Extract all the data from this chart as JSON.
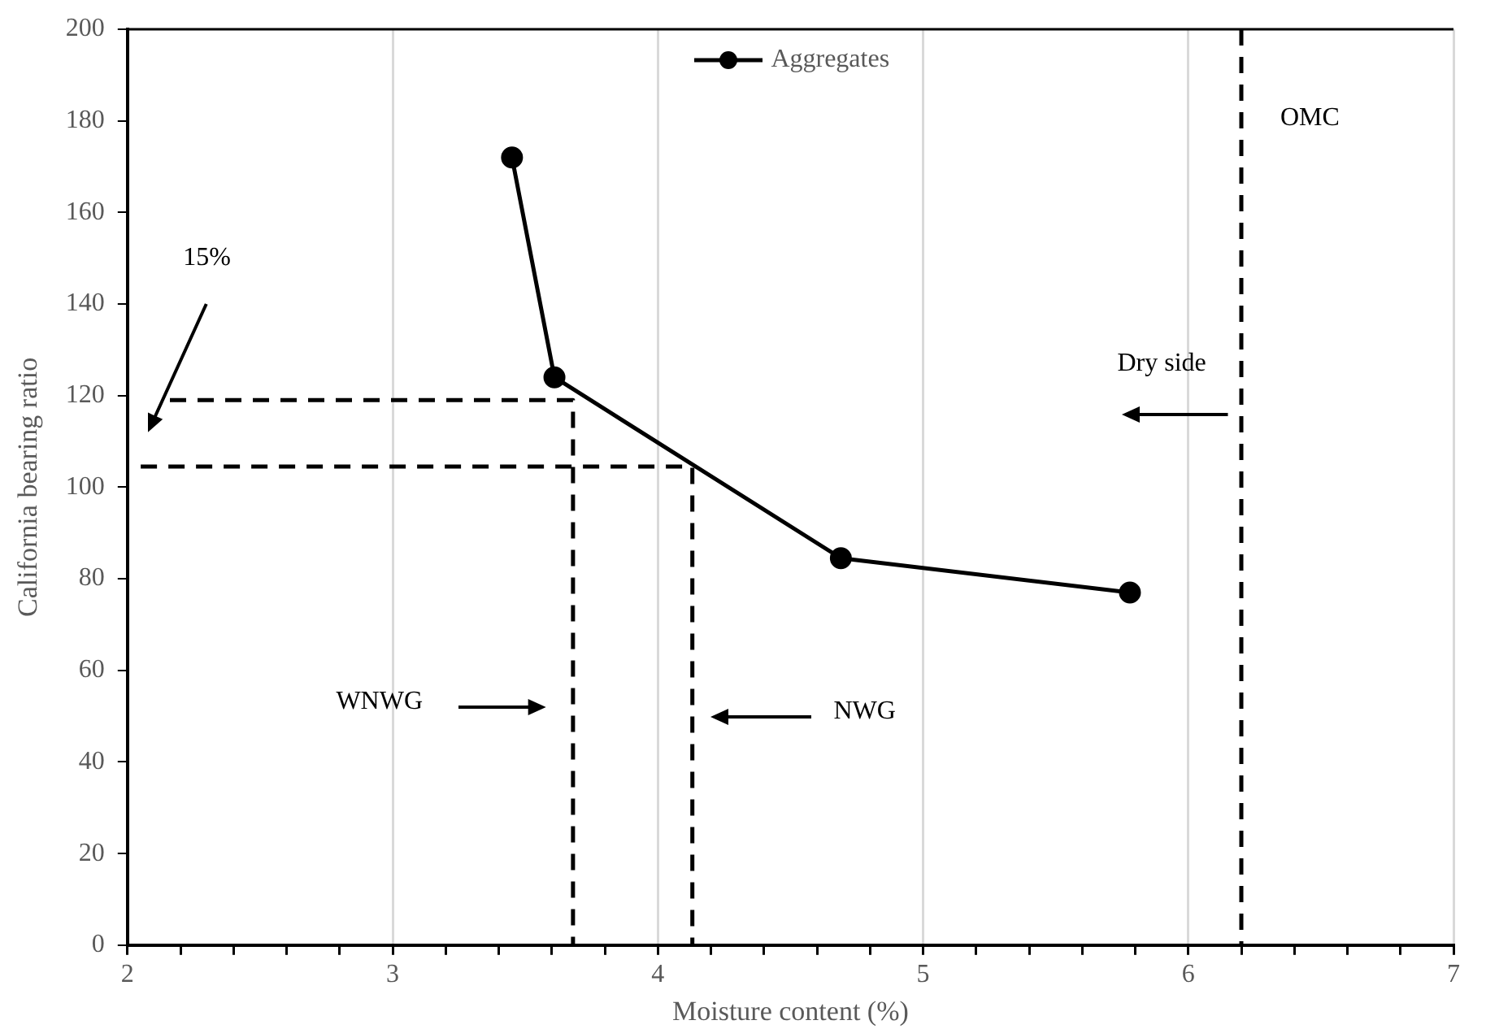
{
  "chart_data": {
    "type": "line",
    "xlabel": "Moisture content (%)",
    "ylabel": "California bearing ratio",
    "xlim": [
      2,
      7
    ],
    "xticks": [
      2,
      {
        "value": 2.2,
        "label": null
      },
      {
        "value": 2.4,
        "label": null
      },
      {
        "value": 2.6,
        "label": null
      },
      {
        "value": 2.8,
        "label": null
      },
      3,
      {
        "value": 3.2,
        "label": null
      },
      {
        "value": 3.4,
        "label": null
      },
      {
        "value": 3.6,
        "label": null
      },
      {
        "value": 3.8,
        "label": null
      },
      4,
      {
        "value": 4.2,
        "label": null
      },
      {
        "value": 4.4,
        "label": null
      },
      {
        "value": 4.6,
        "label": null
      },
      {
        "value": 4.8,
        "label": null
      },
      5,
      {
        "value": 5.2,
        "label": null
      },
      {
        "value": 5.4,
        "label": null
      },
      {
        "value": 5.6,
        "label": null
      },
      {
        "value": 5.8,
        "label": null
      },
      6,
      {
        "value": 6.2,
        "label": null
      },
      {
        "value": 6.4,
        "label": null
      },
      {
        "value": 6.6,
        "label": null
      },
      {
        "value": 6.8,
        "label": null
      },
      7
    ],
    "ylim": [
      0,
      200
    ],
    "yticks": [
      0,
      20,
      40,
      60,
      80,
      100,
      120,
      140,
      160,
      180,
      200
    ],
    "grid": "x",
    "legend": "top",
    "series": [
      {
        "name": "Aggregates",
        "type": "line",
        "color": "#000000",
        "marker": "circle",
        "line_style": "solid",
        "x": [
          3.45,
          3.61,
          4.69,
          5.78
        ],
        "values": [
          172,
          124,
          84.5,
          77
        ]
      },
      {
        "type": "line",
        "color": "#000000",
        "marker": "none",
        "line_style": "dashed",
        "x": [
          2.16,
          3.68,
          3.68
        ],
        "values": [
          119,
          119,
          0
        ]
      },
      {
        "type": "line",
        "color": "#000000",
        "marker": "none",
        "line_style": "dashed",
        "x": [
          2.05,
          4.13,
          4.13
        ],
        "values": [
          104.5,
          104.5,
          0
        ]
      }
    ],
    "ref_lines": [
      {
        "axis": "x",
        "value": 6.2,
        "label": "OMC",
        "color": "#000000",
        "line_style": "dashed"
      }
    ],
    "annotations": [
      "15%",
      "Dry side",
      "WNWG",
      "NWG"
    ]
  }
}
